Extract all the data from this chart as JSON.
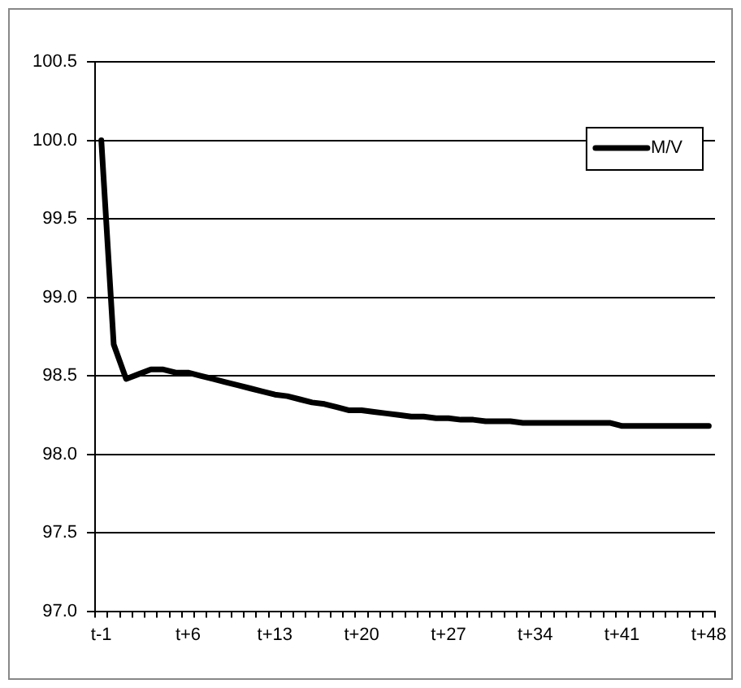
{
  "chart_data": {
    "type": "line",
    "categories": [
      "t-1",
      null,
      null,
      null,
      null,
      null,
      null,
      "t+6",
      null,
      null,
      null,
      null,
      null,
      null,
      "t+13",
      null,
      null,
      null,
      null,
      null,
      null,
      "t+20",
      null,
      null,
      null,
      null,
      null,
      null,
      "t+27",
      null,
      null,
      null,
      null,
      null,
      null,
      "t+34",
      null,
      null,
      null,
      null,
      null,
      null,
      "t+41",
      null,
      null,
      null,
      null,
      null,
      null,
      "t+48"
    ],
    "series": [
      {
        "name": "M/V",
        "color": "#000000",
        "values": [
          100.0,
          98.7,
          98.48,
          98.51,
          98.54,
          98.54,
          98.52,
          98.52,
          98.5,
          98.48,
          98.46,
          98.44,
          98.42,
          98.4,
          98.38,
          98.37,
          98.35,
          98.33,
          98.32,
          98.3,
          98.28,
          98.28,
          98.27,
          98.26,
          98.25,
          98.24,
          98.24,
          98.23,
          98.23,
          98.22,
          98.22,
          98.21,
          98.21,
          98.21,
          98.2,
          98.2,
          98.2,
          98.2,
          98.2,
          98.2,
          98.2,
          98.2,
          98.18,
          98.18,
          98.18,
          98.18,
          98.18,
          98.18,
          98.18,
          98.18
        ]
      }
    ],
    "ylim": [
      97.0,
      100.5
    ],
    "yticks": [
      {
        "value": 97,
        "label": "97.0"
      },
      97.5,
      {
        "value": 98,
        "label": "98.0"
      },
      98.5,
      {
        "value": 99,
        "label": "99.0"
      },
      99.5,
      {
        "value": 100,
        "label": "100.0"
      },
      100.5
    ],
    "grid": "y",
    "legend": "top right",
    "marker": "none",
    "line_style": "solid"
  }
}
